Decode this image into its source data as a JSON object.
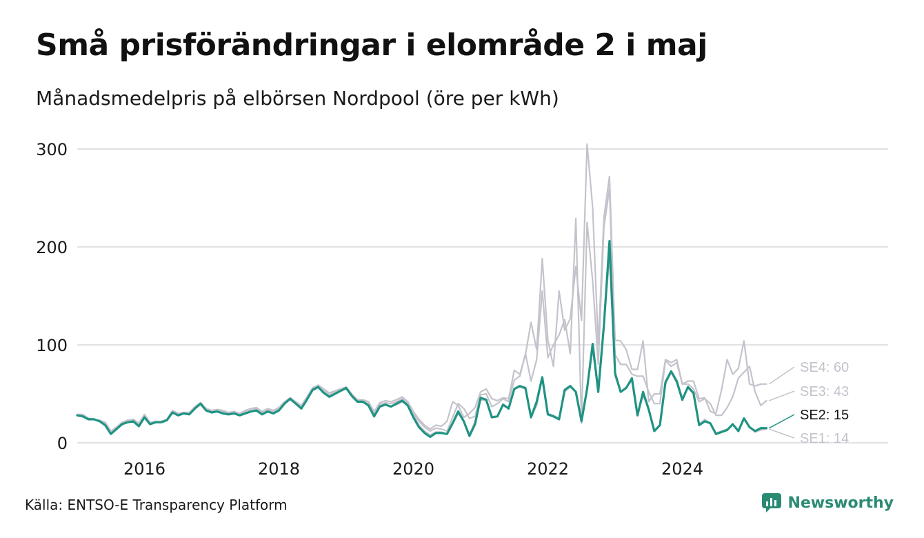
{
  "title": "Små prisförändringar i elområde 2 i maj",
  "subtitle": "Månadsmedelpris på elbörsen Nordpool (öre per kWh)",
  "source": "Källa: ENTSO-E Transparency Platform",
  "brand": "Newsworthy",
  "colors": {
    "highlight": "#1f9383",
    "context": "#c4c3cc",
    "grid": "#e1e1e6",
    "axis_text": "#1a1a1a",
    "brand": "#2b8a73"
  },
  "chart_data": {
    "type": "line",
    "title": "Små prisförändringar i elområde 2 i maj",
    "subtitle": "Månadsmedelpris på elbörsen Nordpool (öre per kWh)",
    "start": "2015-01",
    "frequency": "monthly",
    "x_ticks": [
      2016,
      2018,
      2020,
      2022,
      2024
    ],
    "y_ticks": [
      0,
      100,
      200,
      300
    ],
    "ylim": [
      0,
      310
    ],
    "grid": true,
    "legend": "end-of-line labels (right)",
    "highlight_series": "SE2",
    "series": [
      {
        "name": "SE1",
        "label": "SE1: 14",
        "values": [
          28,
          27,
          24,
          24,
          22,
          19,
          10,
          14,
          19,
          21,
          22,
          17,
          26,
          19,
          21,
          21,
          23,
          31,
          29,
          30,
          29,
          35,
          39,
          33,
          32,
          33,
          31,
          29,
          30,
          28,
          31,
          32,
          34,
          30,
          32,
          30,
          34,
          40,
          44,
          40,
          36,
          45,
          53,
          57,
          52,
          47,
          50,
          53,
          55,
          48,
          43,
          42,
          38,
          27,
          37,
          39,
          37,
          39,
          42,
          38,
          28,
          18,
          12,
          8,
          11,
          11,
          9,
          19,
          30,
          22,
          8,
          22,
          44,
          43,
          27,
          27,
          38,
          35,
          55,
          57,
          55,
          27,
          38,
          66,
          30,
          28,
          25,
          52,
          57,
          52,
          23,
          56,
          95,
          52,
          120,
          190,
          68,
          52,
          57,
          63,
          29,
          48,
          35,
          12,
          18,
          60,
          72,
          61,
          43,
          56,
          50,
          19,
          24,
          20,
          10,
          12,
          14,
          18,
          12,
          24,
          16,
          11,
          13,
          14
        ]
      },
      {
        "name": "SE2",
        "label": "SE2: 15",
        "values": [
          28,
          27,
          24,
          24,
          22,
          18,
          9,
          14,
          19,
          21,
          22,
          17,
          26,
          19,
          21,
          21,
          23,
          31,
          28,
          30,
          29,
          35,
          40,
          33,
          31,
          32,
          30,
          29,
          30,
          28,
          30,
          32,
          33,
          29,
          32,
          30,
          33,
          40,
          45,
          40,
          35,
          44,
          54,
          57,
          51,
          47,
          50,
          53,
          56,
          48,
          42,
          42,
          38,
          27,
          37,
          39,
          37,
          40,
          43,
          38,
          26,
          16,
          10,
          6,
          10,
          10,
          9,
          20,
          32,
          22,
          7,
          19,
          46,
          44,
          26,
          27,
          39,
          35,
          55,
          58,
          56,
          26,
          42,
          67,
          29,
          27,
          24,
          54,
          58,
          52,
          22,
          55,
          101,
          52,
          120,
          206,
          71,
          52,
          56,
          66,
          28,
          52,
          34,
          12,
          18,
          62,
          73,
          63,
          44,
          57,
          51,
          18,
          22,
          20,
          9,
          11,
          13,
          19,
          12,
          25,
          16,
          12,
          15,
          15
        ]
      },
      {
        "name": "SE3",
        "label": "SE3: 43",
        "values": [
          29,
          28,
          24,
          24,
          22,
          20,
          11,
          15,
          20,
          23,
          24,
          19,
          28,
          20,
          21,
          22,
          23,
          32,
          29,
          30,
          30,
          36,
          40,
          34,
          32,
          33,
          32,
          30,
          31,
          29,
          32,
          33,
          35,
          31,
          34,
          32,
          35,
          41,
          45,
          41,
          37,
          46,
          55,
          58,
          53,
          49,
          52,
          54,
          56,
          49,
          43,
          43,
          40,
          30,
          39,
          41,
          40,
          42,
          45,
          40,
          30,
          22,
          16,
          12,
          15,
          14,
          12,
          26,
          40,
          35,
          25,
          27,
          49,
          50,
          37,
          40,
          45,
          42,
          64,
          68,
          91,
          63,
          85,
          155,
          87,
          100,
          110,
          126,
          91,
          229,
          20,
          225,
          165,
          80,
          220,
          260,
          90,
          80,
          80,
          70,
          68,
          68,
          52,
          40,
          40,
          84,
          78,
          82,
          60,
          60,
          55,
          42,
          45,
          40,
          28,
          28,
          36,
          47,
          66,
          72,
          78,
          52,
          38,
          43
        ]
      },
      {
        "name": "SE4",
        "label": "SE4: 60",
        "values": [
          29,
          29,
          25,
          24,
          23,
          21,
          12,
          16,
          21,
          23,
          24,
          20,
          29,
          21,
          22,
          22,
          24,
          33,
          30,
          31,
          31,
          37,
          41,
          35,
          33,
          34,
          33,
          31,
          32,
          30,
          33,
          35,
          36,
          32,
          35,
          33,
          36,
          42,
          46,
          42,
          38,
          47,
          56,
          59,
          55,
          51,
          53,
          55,
          57,
          50,
          44,
          44,
          42,
          32,
          41,
          43,
          42,
          44,
          47,
          42,
          32,
          24,
          18,
          14,
          18,
          17,
          22,
          42,
          38,
          26,
          30,
          36,
          52,
          55,
          45,
          43,
          46,
          45,
          74,
          70,
          90,
          123,
          95,
          188,
          105,
          78,
          155,
          115,
          127,
          180,
          125,
          305,
          240,
          100,
          230,
          272,
          105,
          104,
          95,
          75,
          75,
          104,
          42,
          50,
          50,
          85,
          82,
          85,
          60,
          63,
          63,
          45,
          46,
          32,
          30,
          54,
          85,
          70,
          76,
          104,
          60,
          58,
          60,
          60
        ]
      }
    ]
  }
}
